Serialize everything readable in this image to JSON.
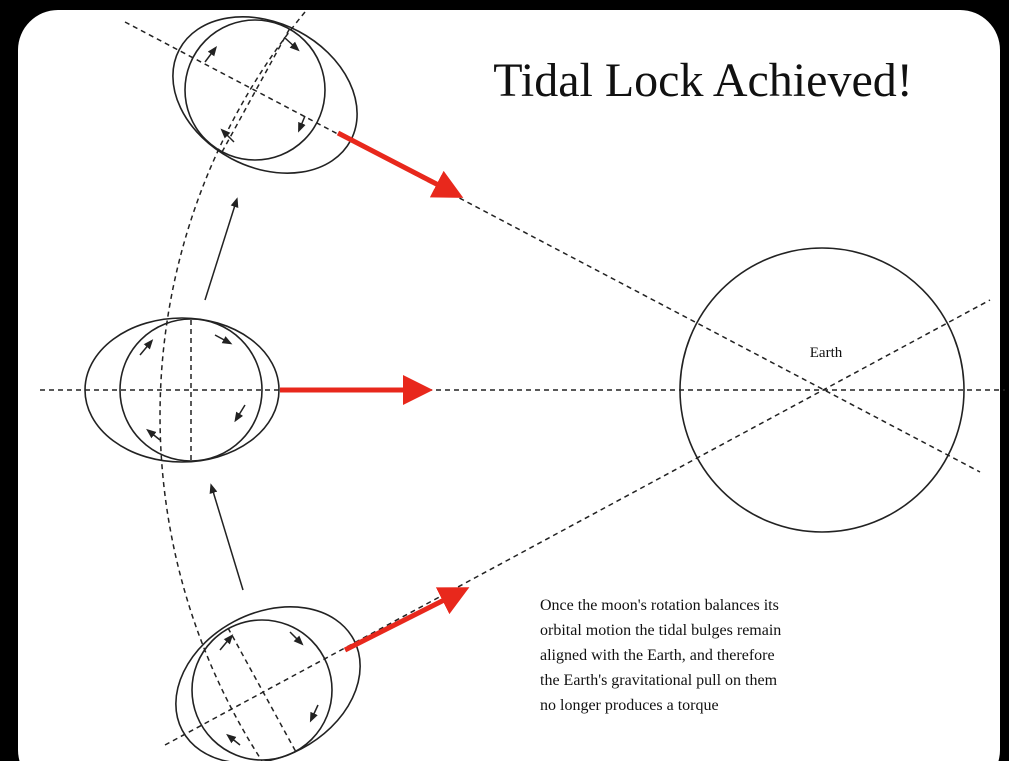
{
  "title": "Tidal Lock Achieved!",
  "earth_label": "Earth",
  "caption": [
    "Once the moon's rotation balances its",
    "orbital motion the tidal bulges remain",
    "aligned with the Earth, and therefore",
    "the Earth's gravitational pull on them",
    "no longer produces a torque"
  ]
}
